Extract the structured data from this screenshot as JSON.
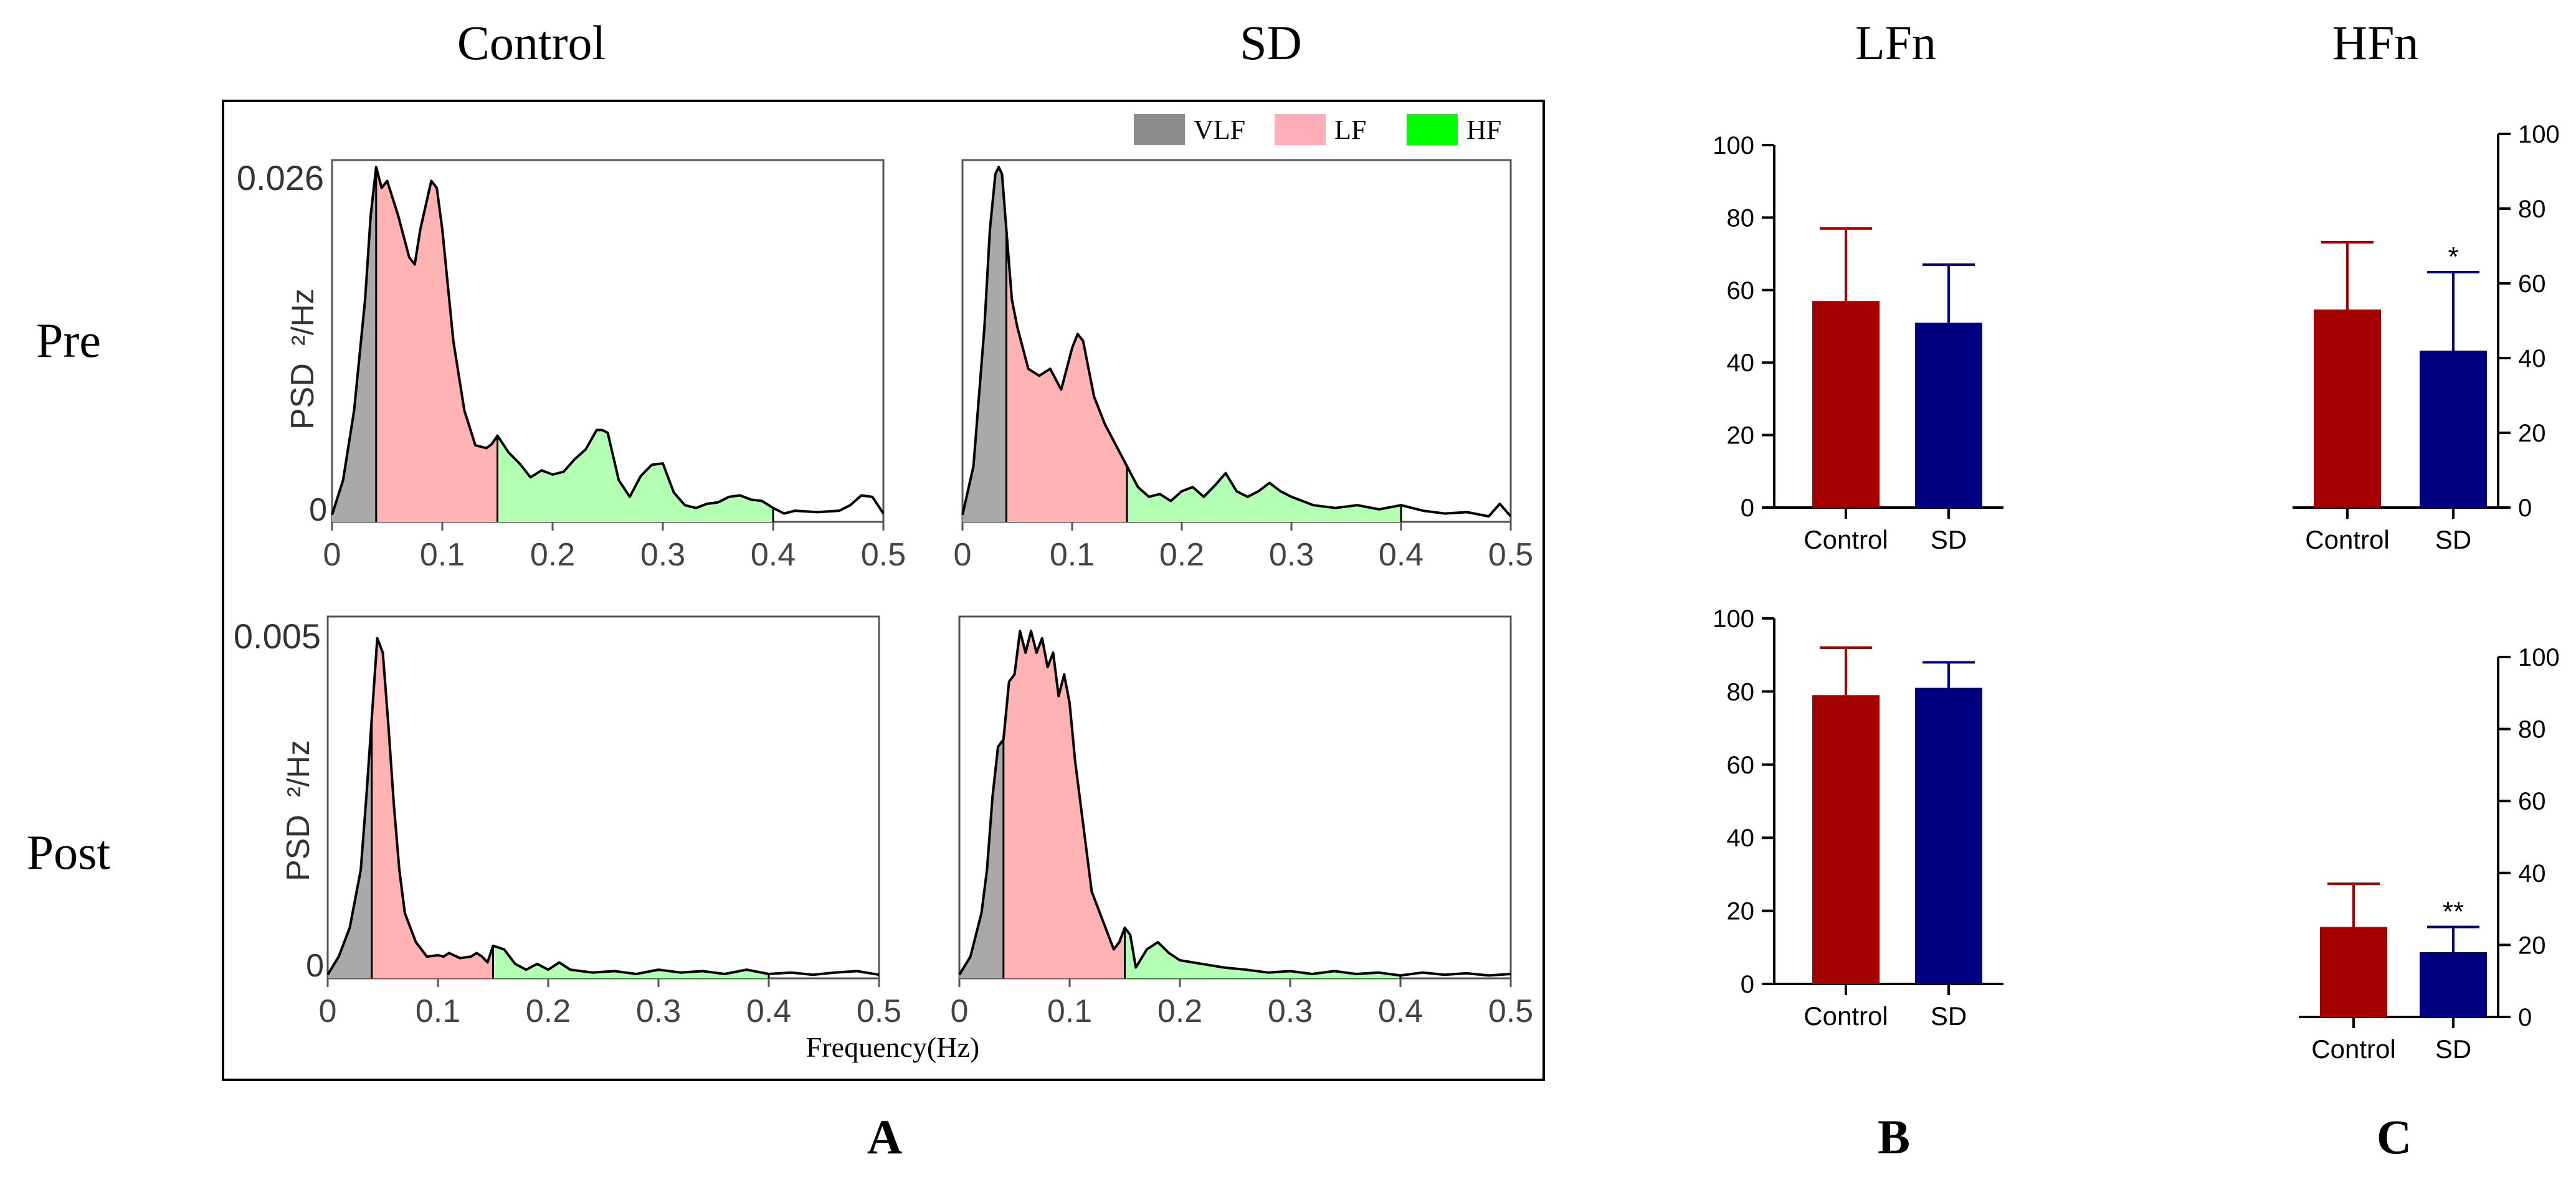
{
  "headers": {
    "control": "Control",
    "sd": "SD",
    "lfn": "LFn",
    "hfn": "HFn"
  },
  "row_labels": {
    "pre": "Pre",
    "post": "Post"
  },
  "panel_labels": {
    "a": "A",
    "b": "B",
    "c": "C"
  },
  "psd": {
    "legend": [
      {
        "label": "VLF",
        "color": "#8c8c8c"
      },
      {
        "label": "LF",
        "color": "#ffaeb9"
      },
      {
        "label": "HF",
        "color": "#00ff00"
      }
    ],
    "fill_colors": {
      "vlf": "#a9a9a9",
      "lf": "#ffb3b3",
      "hf": "#b3ffb3"
    },
    "bands": {
      "vlf_end": 0.04,
      "lf_end": 0.15,
      "hf_end": 0.4
    },
    "x_ticks": [
      "0",
      "0.1",
      "0.2",
      "0.3",
      "0.4",
      "0.5"
    ],
    "x_label": "Frequency(Hz)",
    "y_label": "PSD",
    "y_unit": "²/Hz",
    "pre_ymax_label": "0.026",
    "post_ymax_label": "0.005",
    "y_zero_label": "0"
  },
  "chart_data": [
    {
      "id": "psd-control-pre",
      "type": "area",
      "title": "Control — Pre",
      "xlabel": "Frequency(Hz)",
      "ylabel": "PSD (²/Hz)",
      "xlim": [
        0,
        0.5
      ],
      "ylim": [
        0,
        0.026
      ],
      "x": [
        0,
        0.01,
        0.02,
        0.03,
        0.035,
        0.04,
        0.045,
        0.05,
        0.06,
        0.07,
        0.075,
        0.08,
        0.09,
        0.095,
        0.1,
        0.11,
        0.12,
        0.13,
        0.14,
        0.145,
        0.15,
        0.16,
        0.17,
        0.18,
        0.19,
        0.2,
        0.21,
        0.22,
        0.23,
        0.24,
        0.245,
        0.25,
        0.26,
        0.27,
        0.28,
        0.29,
        0.3,
        0.31,
        0.32,
        0.33,
        0.34,
        0.35,
        0.36,
        0.37,
        0.38,
        0.39,
        0.4,
        0.41,
        0.42,
        0.44,
        0.46,
        0.47,
        0.48,
        0.49,
        0.5
      ],
      "y": [
        0.0005,
        0.003,
        0.008,
        0.016,
        0.022,
        0.0255,
        0.024,
        0.0245,
        0.022,
        0.019,
        0.0185,
        0.021,
        0.0245,
        0.024,
        0.021,
        0.013,
        0.008,
        0.0055,
        0.0053,
        0.0056,
        0.0062,
        0.005,
        0.0042,
        0.0032,
        0.0037,
        0.0034,
        0.0036,
        0.0045,
        0.0052,
        0.0066,
        0.0066,
        0.0064,
        0.003,
        0.0018,
        0.0033,
        0.0041,
        0.0042,
        0.0021,
        0.0012,
        0.001,
        0.0013,
        0.0014,
        0.0018,
        0.0019,
        0.0016,
        0.0015,
        0.001,
        0.0006,
        0.0008,
        0.0007,
        0.0008,
        0.0012,
        0.0019,
        0.0018,
        0.0006
      ]
    },
    {
      "id": "psd-sd-pre",
      "type": "area",
      "title": "SD — Pre",
      "xlabel": "Frequency(Hz)",
      "ylabel": "PSD (²/Hz)",
      "xlim": [
        0,
        0.5
      ],
      "ylim": [
        0,
        0.026
      ],
      "x": [
        0,
        0.01,
        0.02,
        0.025,
        0.03,
        0.033,
        0.036,
        0.04,
        0.045,
        0.05,
        0.06,
        0.07,
        0.08,
        0.09,
        0.1,
        0.105,
        0.11,
        0.115,
        0.12,
        0.13,
        0.14,
        0.15,
        0.16,
        0.17,
        0.18,
        0.19,
        0.2,
        0.21,
        0.22,
        0.23,
        0.24,
        0.25,
        0.26,
        0.27,
        0.28,
        0.29,
        0.3,
        0.32,
        0.34,
        0.36,
        0.38,
        0.4,
        0.42,
        0.44,
        0.46,
        0.48,
        0.49,
        0.5
      ],
      "y": [
        0.0005,
        0.004,
        0.014,
        0.021,
        0.025,
        0.0255,
        0.025,
        0.021,
        0.016,
        0.014,
        0.011,
        0.0105,
        0.011,
        0.0095,
        0.0125,
        0.0135,
        0.013,
        0.011,
        0.009,
        0.007,
        0.0055,
        0.004,
        0.0025,
        0.0018,
        0.002,
        0.0015,
        0.0022,
        0.0025,
        0.0018,
        0.0026,
        0.0035,
        0.0022,
        0.0018,
        0.0022,
        0.0028,
        0.0022,
        0.0018,
        0.0012,
        0.001,
        0.0012,
        0.0009,
        0.0012,
        0.0008,
        0.0006,
        0.0007,
        0.0004,
        0.0013,
        0.0004
      ]
    },
    {
      "id": "psd-control-post",
      "type": "area",
      "title": "Control — Post",
      "xlabel": "Frequency(Hz)",
      "ylabel": "PSD (²/Hz)",
      "xlim": [
        0,
        0.5
      ],
      "ylim": [
        0,
        0.005
      ],
      "x": [
        0,
        0.01,
        0.02,
        0.03,
        0.035,
        0.04,
        0.045,
        0.05,
        0.055,
        0.06,
        0.065,
        0.07,
        0.08,
        0.09,
        0.1,
        0.105,
        0.11,
        0.12,
        0.13,
        0.135,
        0.14,
        0.145,
        0.15,
        0.16,
        0.17,
        0.18,
        0.19,
        0.2,
        0.21,
        0.22,
        0.24,
        0.26,
        0.28,
        0.3,
        0.32,
        0.34,
        0.36,
        0.38,
        0.4,
        0.42,
        0.44,
        0.46,
        0.48,
        0.5
      ],
      "y": [
        5e-05,
        0.0003,
        0.0007,
        0.0015,
        0.0025,
        0.0036,
        0.0047,
        0.0045,
        0.0035,
        0.0024,
        0.0015,
        0.0009,
        0.0005,
        0.0003,
        0.00032,
        0.0003,
        0.00035,
        0.00028,
        0.0003,
        0.00035,
        0.0003,
        0.00022,
        0.00045,
        0.0004,
        0.0002,
        0.00012,
        0.0002,
        0.00012,
        0.00022,
        0.00012,
        8e-05,
        0.0001,
        6e-05,
        0.00012,
        8e-05,
        0.0001,
        6e-05,
        0.00012,
        6e-05,
        8e-05,
        5e-05,
        8e-05,
        0.0001,
        5e-05
      ]
    },
    {
      "id": "psd-sd-post",
      "type": "area",
      "title": "SD — Post",
      "xlabel": "Frequency(Hz)",
      "ylabel": "PSD (²/Hz)",
      "xlim": [
        0,
        0.5
      ],
      "ylim": [
        0,
        0.005
      ],
      "x": [
        0,
        0.01,
        0.02,
        0.025,
        0.03,
        0.035,
        0.04,
        0.045,
        0.05,
        0.055,
        0.06,
        0.065,
        0.07,
        0.075,
        0.08,
        0.085,
        0.09,
        0.095,
        0.1,
        0.105,
        0.11,
        0.12,
        0.13,
        0.14,
        0.145,
        0.15,
        0.155,
        0.16,
        0.17,
        0.18,
        0.19,
        0.2,
        0.22,
        0.24,
        0.26,
        0.28,
        0.3,
        0.32,
        0.34,
        0.36,
        0.38,
        0.4,
        0.42,
        0.44,
        0.46,
        0.48,
        0.5
      ],
      "y": [
        5e-05,
        0.0003,
        0.0009,
        0.0015,
        0.0025,
        0.0032,
        0.0033,
        0.0041,
        0.0042,
        0.0048,
        0.0045,
        0.0048,
        0.0045,
        0.0047,
        0.0043,
        0.0045,
        0.0039,
        0.0042,
        0.0038,
        0.003,
        0.0024,
        0.0012,
        0.0008,
        0.0004,
        0.0005,
        0.0007,
        0.0006,
        0.00015,
        0.0004,
        0.0005,
        0.00035,
        0.00025,
        0.0002,
        0.00015,
        0.00012,
        8e-05,
        0.0001,
        6e-05,
        0.0001,
        6e-05,
        8e-05,
        4e-05,
        8e-05,
        5e-05,
        7e-05,
        4e-05,
        6e-05
      ]
    },
    {
      "id": "bar-lfn-pre",
      "type": "bar",
      "ylabel": "LFn",
      "categories": [
        "Control",
        "SD"
      ],
      "values": [
        57,
        51
      ],
      "errors": [
        20,
        16
      ],
      "ylim": [
        0,
        100
      ],
      "yticks": [
        "0",
        "20",
        "40",
        "60",
        "80",
        "100"
      ],
      "colors": [
        "#a50000",
        "#000080"
      ],
      "err_colors": [
        "#a50000",
        "#000080"
      ],
      "axis_side": "left",
      "annotations": [
        "",
        ""
      ]
    },
    {
      "id": "bar-hfn-pre",
      "type": "bar",
      "ylabel": "HFn",
      "categories": [
        "Control",
        "SD"
      ],
      "values": [
        53,
        42
      ],
      "errors": [
        18,
        21
      ],
      "ylim": [
        0,
        100
      ],
      "yticks": [
        "0",
        "20",
        "40",
        "60",
        "80",
        "100"
      ],
      "colors": [
        "#a50000",
        "#000080"
      ],
      "err_colors": [
        "#a50000",
        "#000080"
      ],
      "axis_side": "right",
      "annotations": [
        "",
        "*"
      ]
    },
    {
      "id": "bar-lfn-post",
      "type": "bar",
      "ylabel": "LFn",
      "categories": [
        "Control",
        "SD"
      ],
      "values": [
        79,
        81
      ],
      "errors": [
        13,
        7
      ],
      "ylim": [
        0,
        100
      ],
      "yticks": [
        "0",
        "20",
        "40",
        "60",
        "80",
        "100"
      ],
      "colors": [
        "#a50000",
        "#000080"
      ],
      "err_colors": [
        "#a50000",
        "#000080"
      ],
      "axis_side": "left",
      "annotations": [
        "",
        ""
      ]
    },
    {
      "id": "bar-hfn-post",
      "type": "bar",
      "ylabel": "HFn",
      "categories": [
        "Control",
        "SD"
      ],
      "values": [
        25,
        18
      ],
      "errors": [
        12,
        7
      ],
      "ylim": [
        0,
        100
      ],
      "yticks": [
        "0",
        "20",
        "40",
        "60",
        "80",
        "100"
      ],
      "colors": [
        "#a50000",
        "#000080"
      ],
      "err_colors": [
        "#a50000",
        "#000080"
      ],
      "axis_side": "right",
      "annotations": [
        "",
        "**"
      ]
    }
  ]
}
